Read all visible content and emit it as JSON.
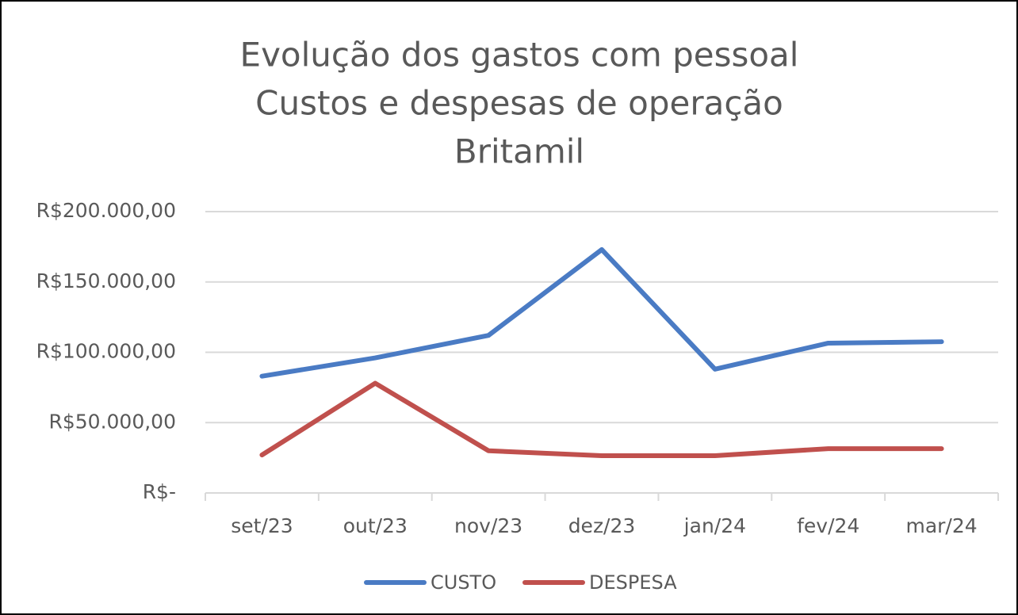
{
  "chart_data": {
    "type": "line",
    "title": [
      "Evolução dos gastos com pessoal",
      "Custos e despesas de operação",
      "Britamil"
    ],
    "categories": [
      "set/23",
      "out/23",
      "nov/23",
      "dez/23",
      "jan/24",
      "fev/24",
      "mar/24"
    ],
    "series": [
      {
        "name": "CUSTO",
        "color": "#4a7bc4",
        "values": [
          83000,
          96000,
          112000,
          173000,
          88000,
          106500,
          107500
        ]
      },
      {
        "name": "DESPESA",
        "color": "#c0504d",
        "values": [
          27000,
          78000,
          30000,
          26500,
          26500,
          31500,
          31500
        ]
      }
    ],
    "ylim": [
      0,
      200000
    ],
    "yticks": [
      {
        "value": 0,
        "label": "R$-"
      },
      {
        "value": 50000,
        "label": "R$50.000,00"
      },
      {
        "value": 100000,
        "label": "R$100.000,00"
      },
      {
        "value": 150000,
        "label": "R$150.000,00"
      },
      {
        "value": 200000,
        "label": "R$200.000,00"
      }
    ],
    "grid": true,
    "legend": "bottom"
  }
}
